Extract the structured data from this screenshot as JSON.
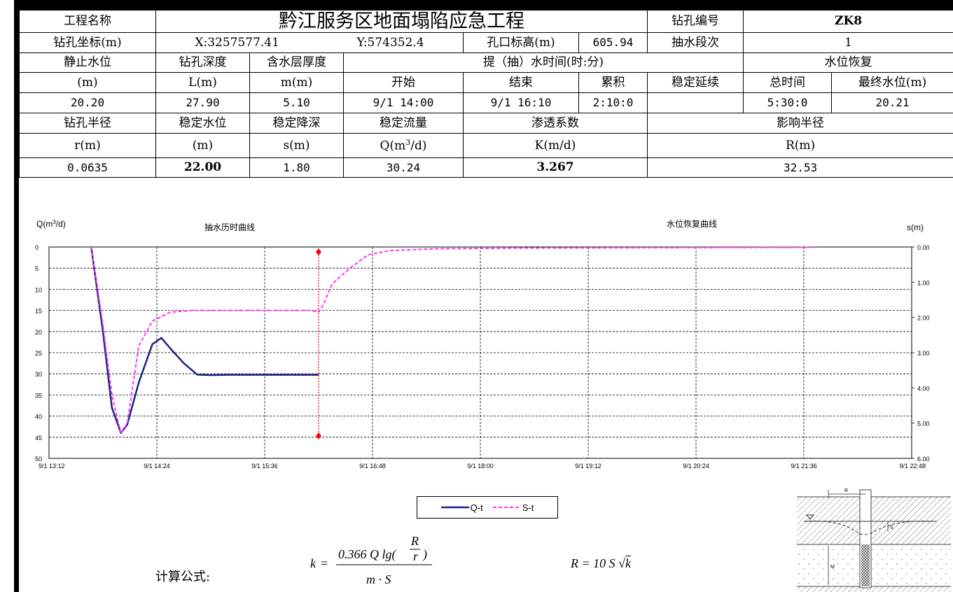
{
  "table": {
    "r1": {
      "name_label": "工程名称",
      "project_name": "黔江服务区地面塌陷应急工程",
      "hole_id_label": "钻孔编号",
      "hole_id": "ZK8"
    },
    "r2": {
      "coord_label": "钻孔坐标(m)",
      "x": "X:3257577.41",
      "y": "Y:574352.4",
      "elev_label": "孔口标高(m)",
      "elev": "605.94",
      "stage_label": "抽水段次",
      "stage": "1"
    },
    "r3": {
      "static_level": "静止水位",
      "depth": "钻孔深度",
      "thickness": "含水层厚度",
      "pump_time": "提（抽）水时间(时:分)",
      "recovery": "水位恢复"
    },
    "r4": {
      "u1": "(m)",
      "u2": "L(m)",
      "u3": "m(m)",
      "start": "开始",
      "end": "结束",
      "cumulative": "累积",
      "stable_dur": "稳定延续",
      "total_time": "总时间",
      "final_level": "最终水位(m)"
    },
    "r5": {
      "static_level": "20.20",
      "depth": "27.90",
      "thickness": "5.10",
      "start": "9/1 14:00",
      "end": "9/1 16:10",
      "cumulative": "2:10:0",
      "stable_dur": "",
      "total_time": "5:30:0",
      "final_level": "20.21"
    },
    "r6": {
      "radius": "钻孔半径",
      "stable_level": "稳定水位",
      "drawdown": "稳定降深",
      "flow": "稳定流量",
      "perm": "渗透系数",
      "influence": "影响半径"
    },
    "r7": {
      "radius": "r(m)",
      "stable_level": "(m)",
      "drawdown": "s(m)",
      "flow_q": "Q(m",
      "flow_exp": "3",
      "flow_tail": "/d)",
      "perm": "K(m/d)",
      "influence": "R(m)"
    },
    "r8": {
      "radius": "0.0635",
      "stable_level": "22.00",
      "drawdown": "1.80",
      "flow": "30.24",
      "perm": "3.267",
      "influence": "32.53"
    }
  },
  "chart_data": {
    "type": "line",
    "title_left": "抽水历时曲线",
    "title_right": "水位恢复曲线",
    "ylabel_left_base": "Q(m",
    "ylabel_left_exp": "3",
    "ylabel_left_tail": "/d)",
    "ylabel_right": "s(m)",
    "x_ticks": [
      "9/1 13:12",
      "9/1 14:24",
      "9/1 15:36",
      "9/1 16:48",
      "9/1 18:00",
      "9/1 19:12",
      "9/1 20:24",
      "9/1 21:36",
      "9/1 22:48"
    ],
    "y_left_ticks": [
      "0",
      "5",
      "10",
      "15",
      "20",
      "25",
      "30",
      "35",
      "40",
      "45",
      "50"
    ],
    "y_right_ticks": [
      "0.00",
      "1.00",
      "2.00",
      "3.00",
      "4.00",
      "5.00",
      "6.00"
    ],
    "xlim_hours": [
      13.2,
      22.8
    ],
    "ylim_left": [
      0,
      50
    ],
    "ylim_right": [
      0,
      6
    ],
    "inverted_y": true,
    "grid": true,
    "series": [
      {
        "name": "Q-t",
        "axis": "left",
        "color": "#1a237e",
        "style": "solid",
        "points": [
          [
            13.67,
            0
          ],
          [
            13.8,
            20
          ],
          [
            13.9,
            38
          ],
          [
            14.0,
            44
          ],
          [
            14.07,
            42
          ],
          [
            14.2,
            32
          ],
          [
            14.35,
            23
          ],
          [
            14.45,
            21.5
          ],
          [
            14.55,
            24
          ],
          [
            14.7,
            27.5
          ],
          [
            14.85,
            30.2
          ],
          [
            15.0,
            30.3
          ],
          [
            15.2,
            30.24
          ],
          [
            15.6,
            30.24
          ],
          [
            16.0,
            30.24
          ],
          [
            16.2,
            30.24
          ]
        ]
      },
      {
        "name": "S-t",
        "axis": "right",
        "color": "#ff33ff",
        "style": "dashed",
        "points": [
          [
            13.67,
            0
          ],
          [
            13.8,
            2.2
          ],
          [
            13.9,
            4.2
          ],
          [
            14.0,
            5.3
          ],
          [
            14.07,
            5.0
          ],
          [
            14.2,
            2.8
          ],
          [
            14.35,
            2.1
          ],
          [
            14.55,
            1.85
          ],
          [
            14.8,
            1.8
          ],
          [
            15.2,
            1.8
          ],
          [
            15.8,
            1.8
          ],
          [
            16.1,
            1.8
          ],
          [
            16.2,
            1.85
          ],
          [
            16.25,
            1.65
          ],
          [
            16.35,
            1.05
          ],
          [
            16.55,
            0.6
          ],
          [
            16.75,
            0.22
          ],
          [
            17.0,
            0.1
          ],
          [
            17.5,
            0.05
          ],
          [
            18.5,
            0.03
          ],
          [
            20.0,
            0.02
          ],
          [
            21.7,
            0.01
          ]
        ]
      }
    ],
    "marker": {
      "time": 16.2,
      "color": "#ff0000"
    }
  },
  "legend": {
    "q": "Q-t",
    "s": "S-t"
  },
  "formula": {
    "label": "计算公式:",
    "k_lhs": "k",
    "eq": "=",
    "k_num": "0.366 Q lg(",
    "k_R": "R",
    "k_r": "r",
    "k_close": ")",
    "k_den": "m · S",
    "r_expr": "R = 10 S",
    "r_sqrt": "k"
  },
  "diagram": {
    "r": "R",
    "m": "M",
    "s": "S"
  }
}
